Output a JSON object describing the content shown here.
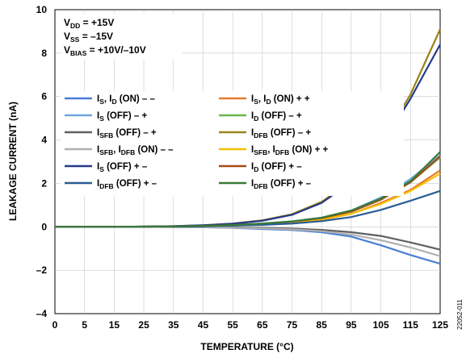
{
  "chart_data": {
    "type": "line",
    "xlabel": "TEMPERATURE (°C)",
    "ylabel": "LEAKAGE CURRENT (nA)",
    "xlim": [
      0,
      125
    ],
    "ylim": [
      -4,
      10
    ],
    "x_ticks": [
      "0",
      "5",
      "15",
      "25",
      "35",
      "45",
      "55",
      "65",
      "75",
      "85",
      "95",
      "105",
      "115",
      "125"
    ],
    "y_ticks": [
      "–4",
      "–2",
      "0",
      "2",
      "4",
      "6",
      "8",
      "10"
    ],
    "grid": true,
    "legend_placement": "middle-left",
    "conditions": [
      {
        "main": "V",
        "sub": "DD",
        "rest": " = +15V"
      },
      {
        "main": "V",
        "sub": "SS",
        "rest": " = –15V"
      },
      {
        "main": "V",
        "sub": "BIAS",
        "rest": " = +10V/–10V"
      }
    ],
    "x": [
      0,
      5,
      15,
      25,
      35,
      45,
      55,
      65,
      75,
      85,
      95,
      105,
      115,
      125
    ],
    "series": [
      {
        "color": "#4a7fd4",
        "legend": [
          {
            "t": "I",
            "s": "S"
          },
          {
            "t": ", I",
            "s": "D"
          },
          {
            "t": " (ON) – –"
          }
        ],
        "values": [
          0,
          0,
          0,
          0,
          -0.01,
          -0.02,
          -0.05,
          -0.1,
          -0.15,
          -0.25,
          -0.45,
          -0.85,
          -1.3,
          -1.7
        ]
      },
      {
        "color": "#e87a2c",
        "legend": [
          {
            "t": "I",
            "s": "S"
          },
          {
            "t": ", I",
            "s": "D"
          },
          {
            "t": " (ON) + +"
          }
        ],
        "values": [
          0,
          0,
          0,
          0,
          0.01,
          0.03,
          0.06,
          0.1,
          0.18,
          0.32,
          0.6,
          1.1,
          1.7,
          2.6
        ]
      },
      {
        "color": "#6ba8e0",
        "legend": [
          {
            "t": "I",
            "s": "S"
          },
          {
            "t": " (OFF) – +"
          }
        ],
        "values": [
          0,
          0,
          0,
          0.01,
          0.02,
          0.04,
          0.08,
          0.15,
          0.25,
          0.42,
          0.75,
          1.35,
          2.2,
          3.3
        ]
      },
      {
        "color": "#6bb84a",
        "legend": [
          {
            "t": "I",
            "s": "D"
          },
          {
            "t": " (OFF) – +"
          }
        ],
        "values": [
          0,
          0,
          0,
          0.01,
          0.02,
          0.04,
          0.08,
          0.15,
          0.25,
          0.4,
          0.7,
          1.25,
          2.05,
          3.2
        ]
      },
      {
        "color": "#606060",
        "legend": [
          {
            "t": "I",
            "s": "SFB"
          },
          {
            "t": " (OFF) – +"
          }
        ],
        "values": [
          0,
          0,
          0,
          0,
          -0.01,
          -0.01,
          -0.03,
          -0.05,
          -0.08,
          -0.14,
          -0.25,
          -0.42,
          -0.72,
          -1.05
        ]
      },
      {
        "color": "#9a8418",
        "legend": [
          {
            "t": "I",
            "s": "DFB"
          },
          {
            "t": " (OFF) – +"
          }
        ],
        "values": [
          0,
          0,
          0,
          0.01,
          0.03,
          0.07,
          0.15,
          0.3,
          0.58,
          1.15,
          2.1,
          3.8,
          6.1,
          9.1
        ]
      },
      {
        "color": "#b0b0b0",
        "legend": [
          {
            "t": "I",
            "s": "SFB"
          },
          {
            "t": ", I",
            "s": "DFB"
          },
          {
            "t": " (ON) – –"
          }
        ],
        "values": [
          0,
          0,
          0,
          0,
          -0.01,
          -0.02,
          -0.04,
          -0.07,
          -0.12,
          -0.2,
          -0.36,
          -0.62,
          -0.95,
          -1.35
        ]
      },
      {
        "color": "#f5c000",
        "legend": [
          {
            "t": "I",
            "s": "SFB"
          },
          {
            "t": ", I",
            "s": "DFB"
          },
          {
            "t": " (ON) + +"
          }
        ],
        "values": [
          0,
          0,
          0,
          0,
          0.01,
          0.03,
          0.06,
          0.11,
          0.2,
          0.34,
          0.6,
          1.05,
          1.65,
          2.45
        ]
      },
      {
        "color": "#253a8a",
        "legend": [
          {
            "t": "I",
            "s": "S"
          },
          {
            "t": " (OFF)  + –"
          }
        ],
        "values": [
          0,
          0,
          0,
          0.01,
          0.03,
          0.07,
          0.14,
          0.28,
          0.55,
          1.1,
          2.05,
          3.7,
          5.9,
          8.4
        ]
      },
      {
        "color": "#a84a14",
        "legend": [
          {
            "t": "I",
            "s": "D"
          },
          {
            "t": " (OFF) + –"
          }
        ],
        "values": [
          0,
          0,
          0,
          0,
          0.02,
          0.04,
          0.08,
          0.14,
          0.24,
          0.4,
          0.7,
          1.25,
          2.05,
          3.25
        ]
      },
      {
        "color": "#2a5d94",
        "legend": [
          {
            "t": "I",
            "s": "DFB"
          },
          {
            "t": " (OFF) + –"
          }
        ],
        "values": [
          0,
          0,
          0,
          0,
          0.01,
          0.02,
          0.05,
          0.09,
          0.15,
          0.26,
          0.45,
          0.78,
          1.2,
          1.65
        ]
      },
      {
        "color": "#3a7a3a",
        "legend": [
          {
            "t": "I",
            "s": "DFB"
          },
          {
            "t": " (OFF) + –"
          }
        ],
        "values": [
          0,
          0,
          0,
          0.01,
          0.02,
          0.04,
          0.08,
          0.15,
          0.25,
          0.42,
          0.75,
          1.3,
          2.1,
          3.45
        ]
      }
    ]
  },
  "figure_id": "22052-011"
}
